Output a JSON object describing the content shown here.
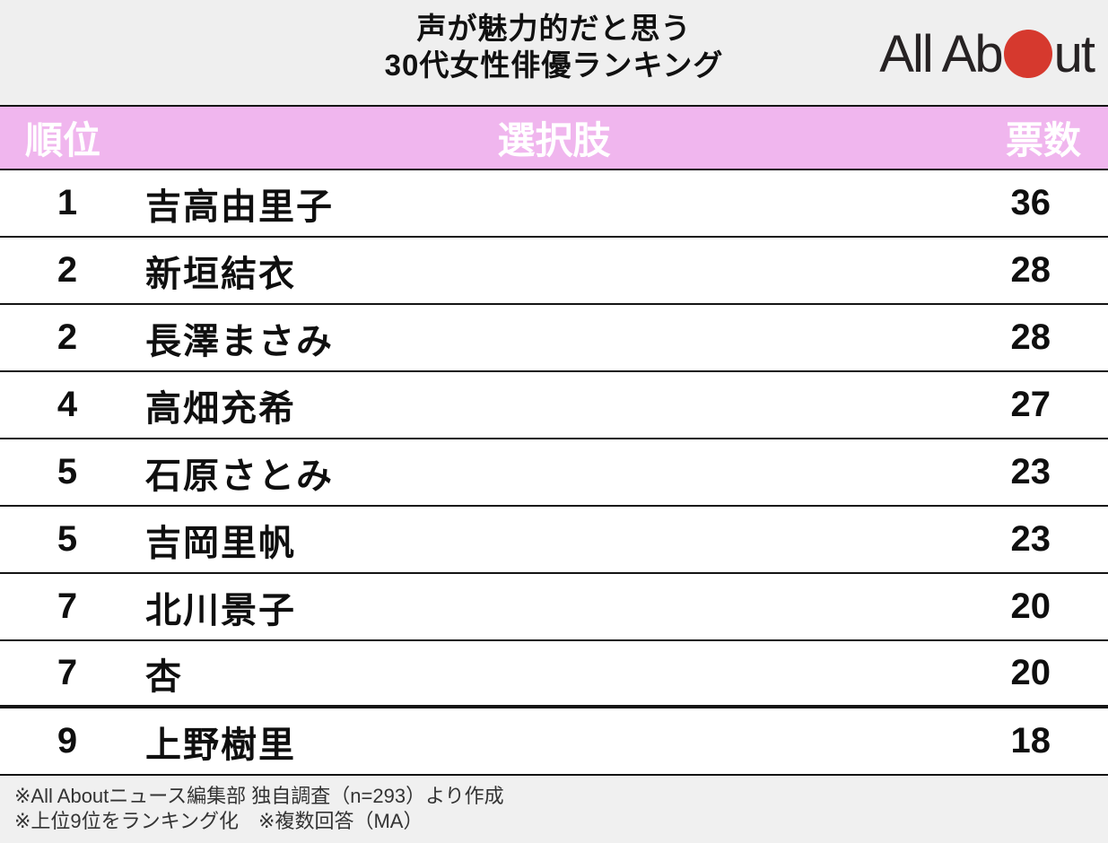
{
  "header": {
    "title_line1": "声が魅力的だと思う",
    "title_line2": "30代女性俳優ランキング",
    "logo": {
      "text_before_dot": "All Ab",
      "text_after_dot": "ut",
      "dot_color": "#d6392e",
      "text_color": "#262223"
    }
  },
  "colors": {
    "top_band_bg": "#efefef",
    "table_header_bg": "#f0b6ee",
    "table_header_text": "#ffffff",
    "row_text": "#0f0f0f",
    "separator": "#141414",
    "footer_bg": "#f0f0f0"
  },
  "table": {
    "columns": {
      "rank": "順位",
      "choice": "選択肢",
      "votes": "票数"
    },
    "rows": [
      {
        "rank": "1",
        "name": "吉高由里子",
        "votes": "36"
      },
      {
        "rank": "2",
        "name": "新垣結衣",
        "votes": "28"
      },
      {
        "rank": "2",
        "name": "長澤まさみ",
        "votes": "28"
      },
      {
        "rank": "4",
        "name": "高畑充希",
        "votes": "27"
      },
      {
        "rank": "5",
        "name": "石原さとみ",
        "votes": "23"
      },
      {
        "rank": "5",
        "name": "吉岡里帆",
        "votes": "23"
      },
      {
        "rank": "7",
        "name": "北川景子",
        "votes": "20"
      },
      {
        "rank": "7",
        "name": "杏",
        "votes": "20"
      },
      {
        "rank": "9",
        "name": "上野樹里",
        "votes": "18"
      }
    ]
  },
  "footer": {
    "note1": "※All Aboutニュース編集部 独自調査（n=293）より作成",
    "note2": "※上位9位をランキング化　※複数回答（MA）"
  },
  "chart_data": {
    "type": "table",
    "title": "声が魅力的だと思う30代女性俳優ランキング",
    "columns": [
      "順位",
      "選択肢",
      "票数"
    ],
    "rows": [
      [
        1,
        "吉高由里子",
        36
      ],
      [
        2,
        "新垣結衣",
        28
      ],
      [
        2,
        "長澤まさみ",
        28
      ],
      [
        4,
        "高畑充希",
        27
      ],
      [
        5,
        "石原さとみ",
        23
      ],
      [
        5,
        "吉岡里帆",
        23
      ],
      [
        7,
        "北川景子",
        20
      ],
      [
        7,
        "杏",
        20
      ],
      [
        9,
        "上野樹里",
        18
      ]
    ],
    "notes": [
      "※All Aboutニュース編集部 独自調査（n=293）より作成",
      "※上位9位をランキング化　※複数回答（MA）"
    ]
  }
}
